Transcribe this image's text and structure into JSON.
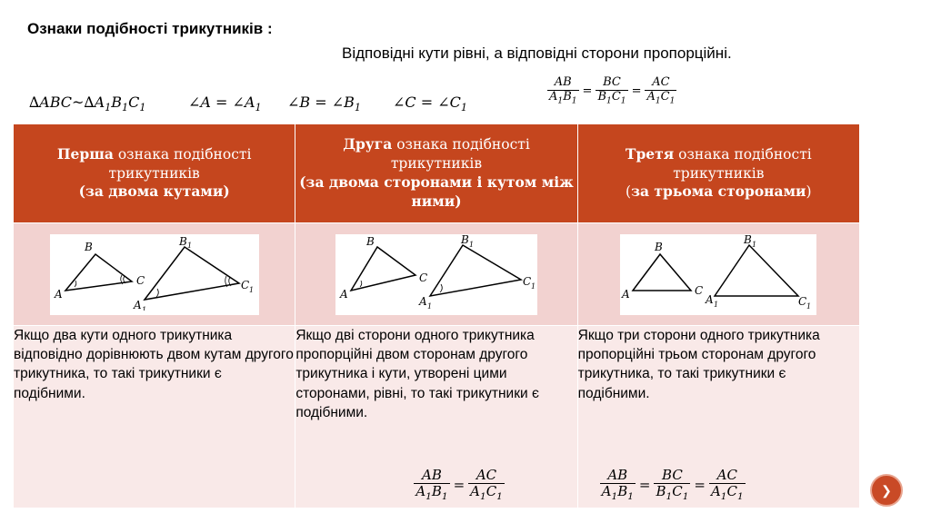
{
  "header": {
    "title": "Ознаки подібності трикутників :",
    "subtitle": "Відповідні кути рівні, а відповідні сторони пропорційні."
  },
  "formulas": {
    "similar": {
      "left": "∆ABC~∆A",
      "s1": "1",
      "mid": "B",
      "s2": "1",
      "end": "C",
      "s3": "1"
    },
    "angleA": {
      "left": "∠A = ∠A",
      "sub": "1"
    },
    "angleB": {
      "left": "∠B = ∠B",
      "sub": "1"
    },
    "angleC": {
      "left": "∠C = ∠C",
      "sub": "1"
    },
    "ratio": [
      "AB",
      "A1B1",
      "BC",
      "B1C1",
      "AC",
      "A1C1"
    ]
  },
  "table": {
    "columns": [
      {
        "bold": "Перша",
        "rest": " ознака подібності трикутників",
        "cond": "(за двома кутами)"
      },
      {
        "bold": "Друга",
        "rest": " ознака подібності трикутників",
        "cond": "(за двома сторонами і кутом між ними)"
      },
      {
        "bold": "Третя",
        "rest": " ознака подібності трикутників",
        "cond_open": "(",
        "cond_bold": "за трьома сторонами",
        "cond_close": ")"
      }
    ],
    "texts": [
      "Якщо два кути одного трикутника відповідно дорівнюють двом кутам другого трикутника, то такі трикутники є подібними.",
      "Якщо дві сторони одного трикутника пропорційні двом сторонам другого трикутника і кути, утворені цими сторонами, рівні, то такі трикутники є подібними.",
      "Якщо три сторони одного трикутника пропорційні трьом сторонам другого трикутника, то такі трикутники є подібними."
    ],
    "labels": {
      "A": "A",
      "B": "B",
      "C": "C",
      "one": "1"
    }
  },
  "nav": {
    "icon": "next-slide-icon"
  }
}
